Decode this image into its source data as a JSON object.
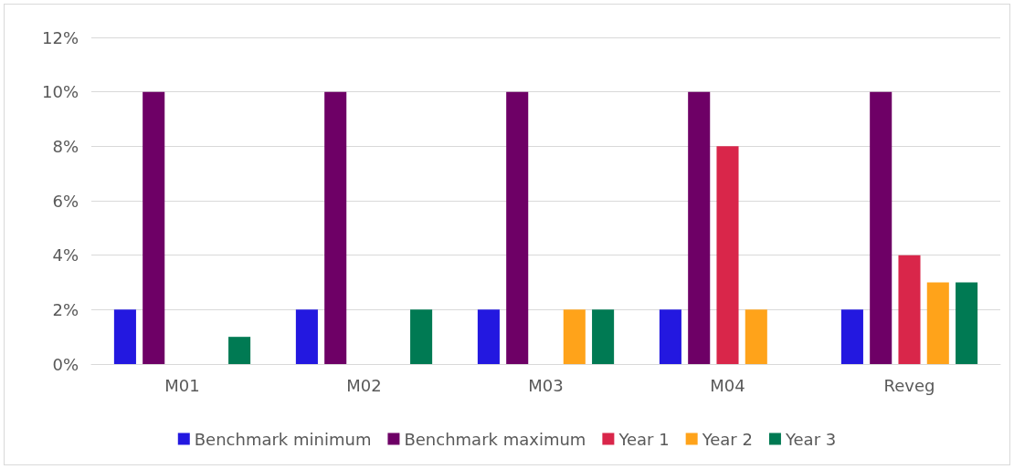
{
  "chart_data": {
    "type": "bar",
    "categories": [
      "M01",
      "M02",
      "M03",
      "M04",
      "Reveg"
    ],
    "series": [
      {
        "name": "Benchmark minimum",
        "color": "#2318e0",
        "values": [
          2,
          2,
          2,
          2,
          2
        ]
      },
      {
        "name": "Benchmark maximum",
        "color": "#6e0066",
        "values": [
          10,
          10,
          10,
          10,
          10
        ]
      },
      {
        "name": "Year 1",
        "color": "#d9264a",
        "values": [
          null,
          null,
          null,
          8,
          4
        ]
      },
      {
        "name": "Year 2",
        "color": "#ffa31a",
        "values": [
          null,
          null,
          2,
          2,
          3
        ]
      },
      {
        "name": "Year 3",
        "color": "#007a53",
        "values": [
          1,
          2,
          2,
          null,
          3
        ]
      }
    ],
    "ylim": [
      0,
      12
    ],
    "yticks": [
      {
        "value": 0,
        "label": "0%"
      },
      {
        "value": 2,
        "label": "2%"
      },
      {
        "value": 4,
        "label": "4%"
      },
      {
        "value": 6,
        "label": "6%"
      },
      {
        "value": 8,
        "label": "8%"
      },
      {
        "value": 10,
        "label": "10%"
      },
      {
        "value": 12,
        "label": "12%"
      }
    ],
    "grid": "y",
    "legend": "bottom"
  }
}
